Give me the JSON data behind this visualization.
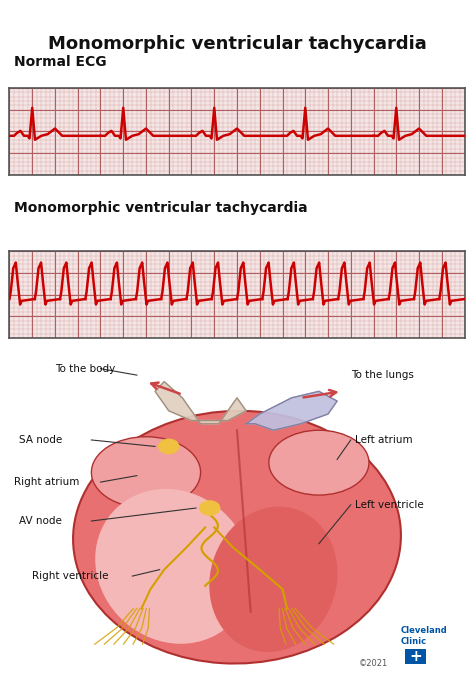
{
  "title": "Monomorphic ventricular tachycardia",
  "ecg_label": "Normal ECG",
  "vt_label": "Monomorphic ventricular tachycardia",
  "bg_color": "#ffffff",
  "grid_minor_color": "#d4a0a0",
  "grid_major_color": "#b06060",
  "ecg_color": "#cc0000",
  "ecg_linewidth": 1.8,
  "fig_width": 4.74,
  "fig_height": 6.97,
  "dpi": 100,
  "copyright": "©2021",
  "clinic": "Cleveland\nClinic",
  "heart_main_color": "#e87070",
  "heart_edge_color": "#b03030",
  "heart_light_color": "#f0a0a0",
  "heart_dark_color": "#e06060",
  "node_color": "#f0c040",
  "bundle_color": "#d4a000",
  "label_color": "#111111",
  "label_line_color": "#333333",
  "cc_blue": "#0055a5",
  "arrow_color": "#cc4444",
  "aorta_color": "#e0d0c0",
  "aorta_edge": "#a09080",
  "pulm_color": "#c0c0e0",
  "pulm_edge": "#8080a0"
}
